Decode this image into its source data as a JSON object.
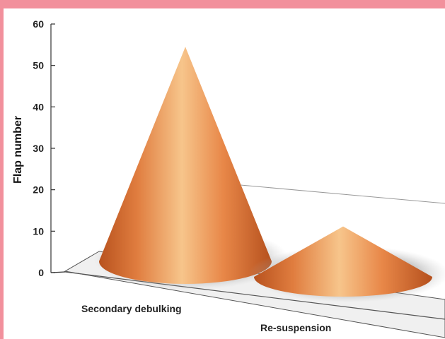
{
  "chart_data": {
    "type": "bar",
    "style": "3d-cone",
    "categories": [
      "Secondary debulking",
      "Re-suspension"
    ],
    "values": [
      54,
      12
    ],
    "ylabel": "Flap number",
    "ylim": [
      0,
      60
    ],
    "yticks": [
      0,
      10,
      20,
      30,
      40,
      50,
      60
    ],
    "grid": false,
    "legend": "none",
    "colors": {
      "cone_dark": "#b8521e",
      "cone_mid": "#e88748",
      "cone_light": "#f7c58b",
      "frame_border": "#f2909c",
      "floor": "#eeeeee"
    }
  }
}
